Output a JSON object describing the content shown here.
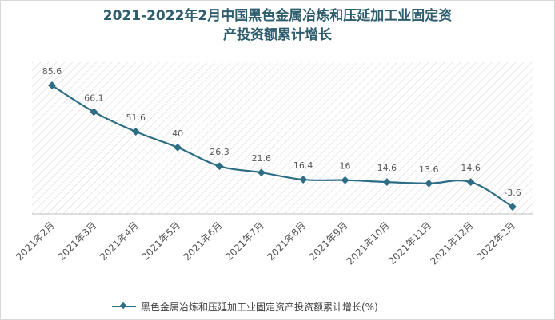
{
  "title": {
    "line1": "2021-2022年2月中国黑色金属冶炼和压延加工业固定资",
    "line2": "产投资额累计增长"
  },
  "colors": {
    "series": "#2e6e85",
    "title": "#2e5d6e",
    "hatch": "#d9d9d9"
  },
  "chart_data": {
    "type": "line",
    "title": "2021-2022年2月中国黑色金属冶炼和压延加工业固定资产投资额累计增长",
    "categories": [
      "2021年2月",
      "2021年3月",
      "2021年4月",
      "2021年5月",
      "2021年6月",
      "2021年7月",
      "2021年8月",
      "2021年9月",
      "2021年10月",
      "2021年11月",
      "2021年12月",
      "2022年2月"
    ],
    "series": [
      {
        "name": "黑色金属冶炼和压延加工业固定资产投资额累计增长(%)",
        "values": [
          85.6,
          66.1,
          51.6,
          40,
          26.3,
          21.6,
          16.4,
          16,
          14.6,
          13.6,
          14.6,
          -3.6
        ],
        "labels": [
          "85.6",
          "66.1",
          "51.6",
          "40",
          "26.3",
          "21.6",
          "16.4",
          "16",
          "14.6",
          "13.6",
          "14.6",
          "-3.6"
        ]
      }
    ],
    "ylim": [
      -10,
      100
    ],
    "grid": false,
    "legend": "bottom",
    "xlabel": "",
    "ylabel": ""
  },
  "legend": {
    "label": "黑色金属冶炼和压延加工业固定资产投资额累计增长(%)"
  }
}
